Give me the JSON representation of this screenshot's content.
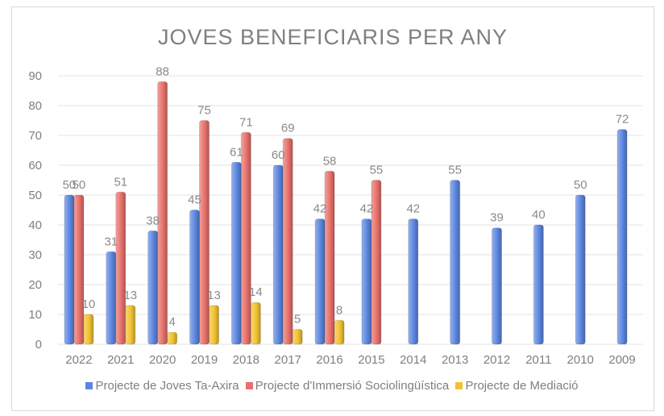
{
  "chart_data": {
    "type": "bar",
    "title": "JOVES BENEFICIARIS PER ANY",
    "categories": [
      "2022",
      "2021",
      "2020",
      "2019",
      "2018",
      "2017",
      "2016",
      "2015",
      "2014",
      "2013",
      "2012",
      "2011",
      "2010",
      "2009"
    ],
    "series": [
      {
        "name": "Projecte de Joves Ta-Axira",
        "color": "#5b86e0",
        "values": [
          50,
          31,
          38,
          45,
          61,
          60,
          42,
          42,
          42,
          55,
          39,
          40,
          50,
          72
        ],
        "labels": [
          "50",
          "31",
          "38",
          "45",
          "61",
          "60",
          "42",
          "42",
          "42",
          "55",
          "39",
          "40",
          "50",
          "72"
        ]
      },
      {
        "name": "Projecte d'Immersió Sociolingüística",
        "color": "#e8706a",
        "values": [
          50,
          51,
          88,
          75,
          71,
          69,
          58,
          55,
          null,
          null,
          null,
          null,
          null,
          null
        ],
        "labels": [
          "50",
          "51",
          "88",
          "75",
          "71",
          "69",
          "58",
          "55",
          "",
          "",
          "",
          "",
          "",
          ""
        ]
      },
      {
        "name": "Projecte de Mediació",
        "color": "#f2c230",
        "values": [
          10,
          13,
          4,
          13,
          14,
          5,
          8,
          null,
          null,
          null,
          null,
          null,
          null,
          null
        ],
        "labels": [
          "10",
          "13",
          "4",
          "13",
          "14",
          "5",
          "8",
          "",
          "",
          "",
          "",
          "",
          "",
          ""
        ]
      }
    ],
    "yticks": [
      "0",
      "10",
      "20",
      "30",
      "40",
      "50",
      "60",
      "70",
      "80",
      "90"
    ],
    "ylim": [
      0,
      90
    ],
    "grid": true,
    "legend_position": "bottom"
  }
}
